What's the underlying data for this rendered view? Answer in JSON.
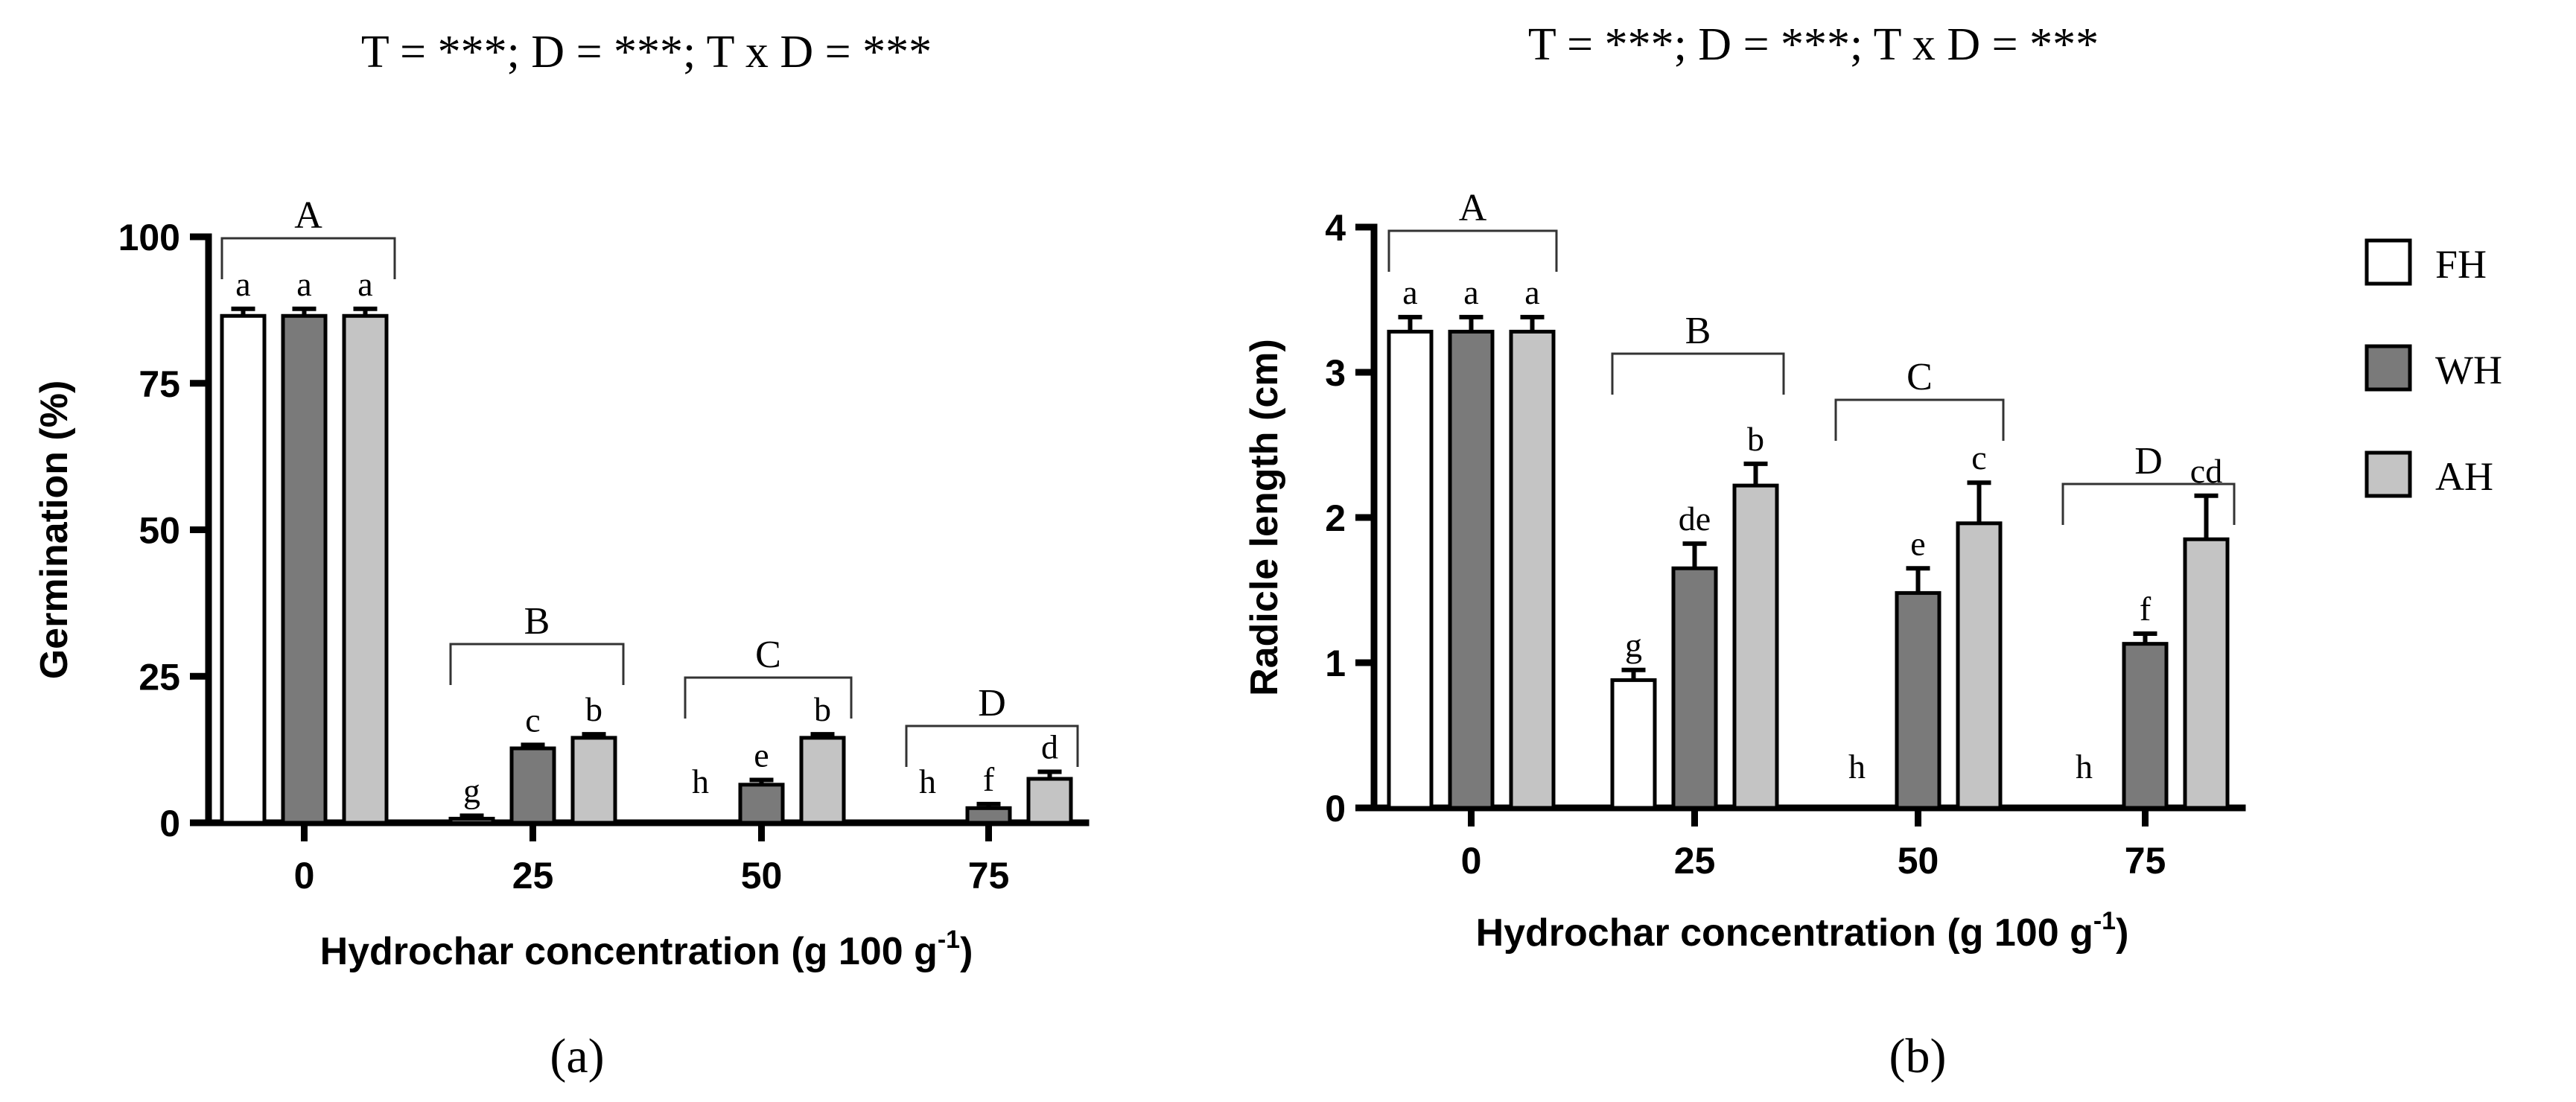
{
  "colors": {
    "FH": "#ffffff",
    "WH": "#7a7a7a",
    "AH": "#c4c4c4"
  },
  "legend": {
    "entries": [
      "FH",
      "WH",
      "AH"
    ],
    "placement": "right"
  },
  "chart_data": [
    {
      "type": "bar",
      "title": "T = ***; D = ***; T x D = ***",
      "xlabel": "Hydrochar concentration (g 100 g",
      "xlabel_sup": "-1",
      "xlabel_close": ")",
      "ylabel": "Germination (%)",
      "panel_label": "(a)",
      "ylim": [
        0,
        100
      ],
      "yticks": [
        0,
        25,
        50,
        75,
        100
      ],
      "categories": [
        "0",
        "25",
        "50",
        "75"
      ],
      "series": [
        {
          "name": "FH",
          "values": [
            86.5,
            0.7,
            0,
            0
          ],
          "errors": [
            1.2,
            0.5,
            0,
            0
          ]
        },
        {
          "name": "WH",
          "values": [
            86.5,
            12.7,
            6.5,
            2.5
          ],
          "errors": [
            1.2,
            0.6,
            0.8,
            0.7
          ]
        },
        {
          "name": "AH",
          "values": [
            86.5,
            14.5,
            14.5,
            7.5
          ],
          "errors": [
            1.2,
            0.6,
            0.6,
            1.2
          ]
        }
      ],
      "bar_letters": [
        [
          "a",
          "a",
          "a"
        ],
        [
          "g",
          "c",
          "b"
        ],
        [
          "h",
          "e",
          "b"
        ],
        [
          "h",
          "f",
          "d"
        ]
      ],
      "group_labels": [
        "A",
        "B",
        "C",
        "D"
      ]
    },
    {
      "type": "bar",
      "title": "T = ***; D = ***; T x D = ***",
      "xlabel": "Hydrochar concentration (g 100 g",
      "xlabel_sup": "-1",
      "xlabel_close": ")",
      "ylabel": "Radicle length (cm)",
      "panel_label": "(b)",
      "ylim": [
        0,
        4
      ],
      "yticks": [
        0,
        1,
        2,
        3,
        4
      ],
      "categories": [
        "0",
        "25",
        "50",
        "75"
      ],
      "series": [
        {
          "name": "FH",
          "values": [
            3.28,
            0.88,
            0,
            0
          ],
          "errors": [
            0.1,
            0.07,
            0,
            0
          ]
        },
        {
          "name": "WH",
          "values": [
            3.28,
            1.65,
            1.48,
            1.13
          ],
          "errors": [
            0.1,
            0.17,
            0.17,
            0.07
          ]
        },
        {
          "name": "AH",
          "values": [
            3.28,
            2.22,
            1.96,
            1.85
          ],
          "errors": [
            0.1,
            0.15,
            0.28,
            0.3
          ]
        }
      ],
      "bar_letters": [
        [
          "a",
          "a",
          "a"
        ],
        [
          "g",
          "de",
          "b"
        ],
        [
          "h",
          "e",
          "c"
        ],
        [
          "h",
          "f",
          "cd"
        ]
      ],
      "group_labels": [
        "A",
        "B",
        "C",
        "D"
      ]
    }
  ]
}
